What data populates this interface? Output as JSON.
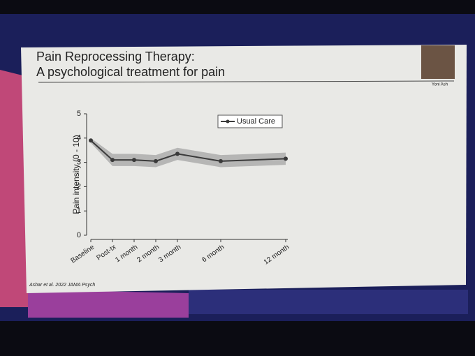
{
  "chart_data": {
    "type": "line",
    "title": [
      "Pain Reprocessing Therapy:",
      "A psychological treatment for pain"
    ],
    "presenter": "Yoni Ash",
    "citation": "Ashar et al. 2022 JAMA Psych",
    "y_label": "Pain intensity (0 - 10)",
    "categories": [
      "Baseline",
      "Post-tx",
      "1 month",
      "2 month",
      "3 month",
      "6 month",
      "12 month"
    ],
    "series": [
      {
        "name": "Usual Care",
        "color": "#3a3a3a",
        "band_color": "#a9a9a9",
        "values": [
          3.9,
          3.1,
          3.1,
          3.05,
          3.35,
          3.05,
          3.15
        ],
        "lower": [
          3.8,
          2.85,
          2.85,
          2.8,
          3.1,
          2.8,
          2.9
        ],
        "upper": [
          4.0,
          3.35,
          3.35,
          3.3,
          3.6,
          3.3,
          3.4
        ]
      }
    ],
    "ylim": [
      0,
      5
    ],
    "yticks": [
      0,
      1,
      2,
      3,
      4,
      5
    ],
    "legend": "upper-right"
  }
}
